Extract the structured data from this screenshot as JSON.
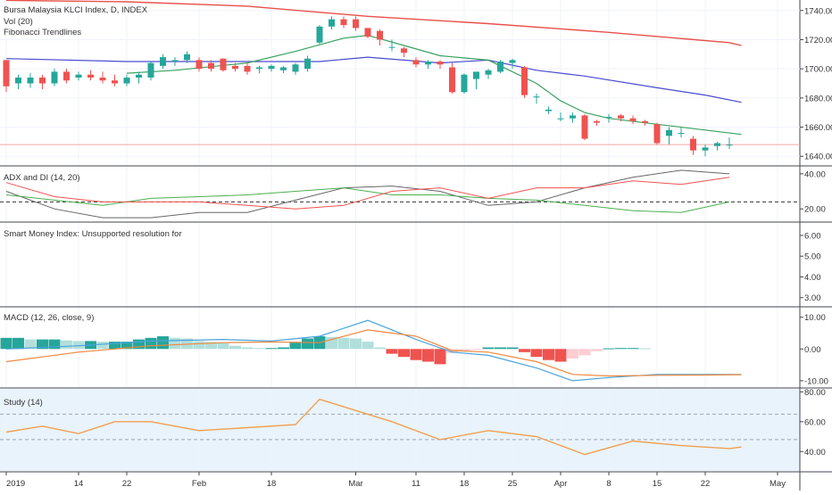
{
  "colors": {
    "up": "#26a69a",
    "down": "#ef5350",
    "ma_red": "#e8504a",
    "ma_blue": "#4a4ad0",
    "ma_green": "#3aa25f",
    "adx": "#666666",
    "plus_di": "#4caf50",
    "minus_di": "#ef5350",
    "macd": "#4aa3df",
    "signal": "#f0883e",
    "study": "#f0a050",
    "study_bg": "#e9f3fb"
  },
  "header": {
    "title": "Bursa Malaysia KLCI Index, D, INDEX",
    "vol": "Vol (20)",
    "fib": "Fibonacci Trendlines"
  },
  "x_axis": {
    "labels": [
      {
        "i": 0,
        "text": "2019"
      },
      {
        "i": 6,
        "text": "14"
      },
      {
        "i": 10,
        "text": "22"
      },
      {
        "i": 16,
        "text": "Feb"
      },
      {
        "i": 22,
        "text": "18"
      },
      {
        "i": 29,
        "text": "Mar"
      },
      {
        "i": 34,
        "text": "11"
      },
      {
        "i": 38,
        "text": "18"
      },
      {
        "i": 42,
        "text": "25"
      },
      {
        "i": 46,
        "text": "Apr"
      },
      {
        "i": 50,
        "text": "8"
      },
      {
        "i": 54,
        "text": "15"
      },
      {
        "i": 58,
        "text": "22"
      },
      {
        "i": 64,
        "text": "May"
      }
    ]
  },
  "panels": {
    "price": {
      "ticks": [
        "1740.00",
        "1720.00",
        "1700.00",
        "1680.00",
        "1660.00",
        "1640.00"
      ]
    },
    "adx": {
      "title": "ADX and DI (14, 20)",
      "ticks": [
        "40.00",
        "20.00"
      ]
    },
    "smi": {
      "title": "Smart Money Index: Unsupported resolution for",
      "ticks": [
        "6.00",
        "5.00",
        "4.00",
        "3.00"
      ]
    },
    "macd": {
      "title": "MACD (12, 26, close, 9)",
      "ticks": [
        "10.00",
        "0.00",
        "-10.00"
      ]
    },
    "study": {
      "title": "Study (14)",
      "ticks": [
        "80.00",
        "60.00",
        "40.00"
      ]
    }
  },
  "chart_data": [
    {
      "type": "candlestick",
      "title": "Bursa Malaysia KLCI Index, D, INDEX",
      "ylim": [
        1634,
        1746
      ],
      "candles": [
        [
          1706,
          1706,
          1684,
          1688
        ],
        [
          1690,
          1696,
          1686,
          1694
        ],
        [
          1690,
          1697,
          1687,
          1694
        ],
        [
          1694,
          1696,
          1686,
          1690
        ],
        [
          1690,
          1700,
          1688,
          1698
        ],
        [
          1698,
          1700,
          1690,
          1692
        ],
        [
          1694,
          1698,
          1692,
          1696
        ],
        [
          1696,
          1699,
          1692,
          1694
        ],
        [
          1694,
          1698,
          1690,
          1692
        ],
        [
          1692,
          1696,
          1688,
          1690
        ],
        [
          1690,
          1696,
          1688,
          1694
        ],
        [
          1694,
          1698,
          1690,
          1696
        ],
        [
          1694,
          1705,
          1692,
          1704
        ],
        [
          1702,
          1710,
          1700,
          1708
        ],
        [
          1705,
          1708,
          1702,
          1706
        ],
        [
          1706,
          1712,
          1704,
          1710
        ],
        [
          1706,
          1708,
          1698,
          1700
        ],
        [
          1704,
          1706,
          1698,
          1700
        ],
        [
          1707,
          1707,
          1698,
          1699
        ],
        [
          1702,
          1704,
          1698,
          1700
        ],
        [
          1702,
          1704,
          1696,
          1698
        ],
        [
          1700,
          1702,
          1697,
          1701
        ],
        [
          1700,
          1703,
          1698,
          1702
        ],
        [
          1699,
          1702,
          1697,
          1701
        ],
        [
          1698,
          1704,
          1696,
          1703
        ],
        [
          1700,
          1709,
          1698,
          1707
        ],
        [
          1718,
          1730,
          1717,
          1729
        ],
        [
          1729,
          1736,
          1727,
          1734
        ],
        [
          1734,
          1736,
          1728,
          1730
        ],
        [
          1734,
          1736,
          1726,
          1728
        ],
        [
          1728,
          1728,
          1721,
          1722
        ],
        [
          1726,
          1727,
          1716,
          1720
        ],
        [
          1715,
          1720,
          1712,
          1715
        ],
        [
          1714,
          1715,
          1708,
          1711
        ],
        [
          1706,
          1708,
          1701,
          1703
        ],
        [
          1703,
          1706,
          1700,
          1705
        ],
        [
          1705,
          1706,
          1700,
          1703
        ],
        [
          1701,
          1704,
          1683,
          1684
        ],
        [
          1684,
          1697,
          1683,
          1696
        ],
        [
          1693,
          1698,
          1686,
          1698
        ],
        [
          1696,
          1700,
          1693,
          1699
        ],
        [
          1698,
          1706,
          1697,
          1705
        ],
        [
          1704,
          1707,
          1700,
          1706
        ],
        [
          1701,
          1702,
          1680,
          1682
        ],
        [
          1681,
          1683,
          1676,
          1681
        ],
        [
          1671,
          1674,
          1669,
          1672
        ],
        [
          1666,
          1670,
          1664,
          1666
        ],
        [
          1666,
          1670,
          1663,
          1668
        ],
        [
          1668,
          1669,
          1651,
          1652
        ],
        [
          1664,
          1665,
          1661,
          1663
        ],
        [
          1667,
          1669,
          1663,
          1667
        ],
        [
          1668,
          1669,
          1664,
          1666
        ],
        [
          1666,
          1668,
          1662,
          1664
        ],
        [
          1664,
          1665,
          1661,
          1663
        ],
        [
          1662,
          1663,
          1648,
          1649
        ],
        [
          1654,
          1660,
          1648,
          1658
        ],
        [
          1656,
          1660,
          1653,
          1656
        ],
        [
          1652,
          1654,
          1641,
          1644
        ],
        [
          1644,
          1648,
          1640,
          1646
        ],
        [
          1647,
          1650,
          1644,
          1649
        ],
        [
          1648,
          1653,
          1645,
          1648
        ]
      ],
      "ma_red": [
        [
          0,
          1747
        ],
        [
          10,
          1746
        ],
        [
          20,
          1743
        ],
        [
          30,
          1736
        ],
        [
          40,
          1731
        ],
        [
          50,
          1725
        ],
        [
          60,
          1718
        ],
        [
          61,
          1716
        ]
      ],
      "ma_blue": [
        [
          0,
          1707
        ],
        [
          10,
          1705
        ],
        [
          20,
          1705
        ],
        [
          26,
          1705
        ],
        [
          30,
          1708
        ],
        [
          36,
          1704
        ],
        [
          40,
          1706
        ],
        [
          44,
          1699
        ],
        [
          48,
          1695
        ],
        [
          54,
          1687
        ],
        [
          58,
          1682
        ],
        [
          61,
          1677
        ]
      ],
      "ma_green": [
        [
          10,
          1697
        ],
        [
          14,
          1699
        ],
        [
          20,
          1704
        ],
        [
          24,
          1712
        ],
        [
          28,
          1721
        ],
        [
          30,
          1723
        ],
        [
          33,
          1716
        ],
        [
          36,
          1709
        ],
        [
          40,
          1706
        ],
        [
          44,
          1690
        ],
        [
          46,
          1678
        ],
        [
          48,
          1670
        ],
        [
          50,
          1666
        ],
        [
          54,
          1662
        ],
        [
          58,
          1658
        ],
        [
          61,
          1655
        ]
      ],
      "ref_line": 1648
    },
    {
      "type": "line",
      "title": "ADX and DI (14, 20)",
      "ylim": [
        13,
        44
      ],
      "ref": 24,
      "series": [
        {
          "name": "ADX",
          "x": [
            0,
            4,
            8,
            12,
            16,
            20,
            24,
            28,
            32,
            36,
            40,
            44,
            48,
            52,
            56,
            60
          ],
          "y": [
            30,
            20,
            15,
            15,
            18,
            18,
            25,
            32,
            33,
            30,
            22,
            24,
            32,
            38,
            42,
            40
          ]
        },
        {
          "name": "+DI",
          "x": [
            0,
            4,
            8,
            12,
            16,
            20,
            24,
            28,
            32,
            36,
            40,
            44,
            48,
            52,
            56,
            60
          ],
          "y": [
            28,
            25,
            22,
            26,
            27,
            28,
            30,
            32,
            28,
            28,
            26,
            25,
            22,
            19,
            18,
            24
          ]
        },
        {
          "name": "-DI",
          "x": [
            0,
            4,
            8,
            12,
            16,
            20,
            24,
            28,
            32,
            36,
            40,
            44,
            48,
            52,
            56,
            60
          ],
          "y": [
            35,
            27,
            24,
            24,
            24,
            22,
            20,
            22,
            30,
            32,
            26,
            32,
            32,
            36,
            34,
            38
          ]
        }
      ]
    },
    {
      "type": "bar+line",
      "title": "MACD (12, 26, close, 9)",
      "ylim": [
        -12,
        13
      ],
      "hist": [
        3.5,
        3.5,
        3.0,
        3.0,
        3.0,
        2.7,
        2.5,
        2.5,
        2.3,
        2.3,
        2.3,
        3.0,
        3.5,
        4.0,
        3.5,
        3.3,
        2.5,
        2.2,
        1.8,
        1.0,
        0.5,
        0.3,
        0.3,
        0.5,
        2.0,
        3.3,
        4.0,
        3.8,
        3.5,
        3.3,
        2.3,
        0.5,
        -1.5,
        -2.5,
        -3.5,
        -4.0,
        -4.8,
        -1.3,
        -0.5,
        -0.3,
        0.5,
        0.5,
        0.5,
        -1.0,
        -2.5,
        -3.5,
        -4.0,
        -3.0,
        -2.0,
        -0.7,
        0.2,
        0.3,
        0.3,
        0.2,
        0,
        0,
        0,
        0,
        0,
        0,
        0
      ],
      "series": [
        {
          "name": "MACD",
          "x": [
            0,
            6,
            12,
            18,
            22,
            26,
            30,
            34,
            37,
            40,
            44,
            47,
            50,
            54,
            58,
            61
          ],
          "y": [
            0,
            1,
            2.5,
            3,
            2.5,
            4,
            9,
            3,
            -1,
            -2,
            -6,
            -10,
            -9,
            -8,
            -8,
            -8
          ]
        },
        {
          "name": "Signal",
          "x": [
            0,
            6,
            12,
            18,
            22,
            26,
            30,
            34,
            37,
            40,
            44,
            47,
            50,
            54,
            58,
            61
          ],
          "y": [
            -4,
            -1,
            1,
            2,
            2.2,
            2,
            6,
            4,
            -0.5,
            -1,
            -4,
            -8,
            -8.5,
            -8.3,
            -8.2,
            -8.1
          ]
        }
      ]
    },
    {
      "type": "line",
      "title": "Study (14)",
      "ylim": [
        27,
        82
      ],
      "bands": [
        65,
        48
      ],
      "series": [
        {
          "name": "Study",
          "x": [
            0,
            3,
            6,
            9,
            12,
            16,
            20,
            24,
            26,
            28,
            32,
            36,
            40,
            44,
            48,
            52,
            56,
            60,
            61
          ],
          "y": [
            53,
            57,
            52,
            60,
            60,
            54,
            56,
            58,
            75,
            70,
            60,
            48,
            54,
            50,
            38,
            47,
            44,
            42,
            43
          ]
        }
      ]
    }
  ]
}
